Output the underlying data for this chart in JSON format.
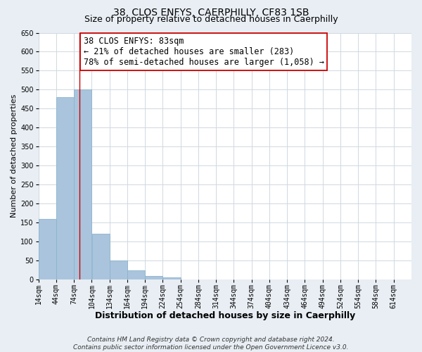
{
  "title": "38, CLOS ENFYS, CAERPHILLY, CF83 1SB",
  "subtitle": "Size of property relative to detached houses in Caerphilly",
  "xlabel": "Distribution of detached houses by size in Caerphilly",
  "ylabel": "Number of detached properties",
  "bar_edges": [
    14,
    44,
    74,
    104,
    134,
    164,
    194,
    224,
    254,
    284,
    314,
    344,
    374,
    404,
    434,
    464,
    494,
    524,
    554,
    584,
    614
  ],
  "bar_heights": [
    160,
    480,
    500,
    120,
    50,
    25,
    10,
    5,
    0,
    0,
    0,
    0,
    0,
    0,
    0,
    0,
    0,
    0,
    0,
    0
  ],
  "bar_color": "#aac4dd",
  "bar_edgecolor": "#8ab4cc",
  "property_line_x": 83,
  "property_line_color": "#cc0000",
  "annotation_text": "38 CLOS ENFYS: 83sqm\n← 21% of detached houses are smaller (283)\n78% of semi-detached houses are larger (1,058) →",
  "annotation_box_edgecolor": "#cc0000",
  "annotation_box_facecolor": "#ffffff",
  "ylim": [
    0,
    650
  ],
  "yticks": [
    0,
    50,
    100,
    150,
    200,
    250,
    300,
    350,
    400,
    450,
    500,
    550,
    600,
    650
  ],
  "xtick_labels": [
    "14sqm",
    "44sqm",
    "74sqm",
    "104sqm",
    "134sqm",
    "164sqm",
    "194sqm",
    "224sqm",
    "254sqm",
    "284sqm",
    "314sqm",
    "344sqm",
    "374sqm",
    "404sqm",
    "434sqm",
    "464sqm",
    "494sqm",
    "524sqm",
    "554sqm",
    "584sqm",
    "614sqm"
  ],
  "footnote": "Contains HM Land Registry data © Crown copyright and database right 2024.\nContains public sector information licensed under the Open Government Licence v3.0.",
  "title_fontsize": 10,
  "subtitle_fontsize": 9,
  "xlabel_fontsize": 9,
  "ylabel_fontsize": 8,
  "tick_fontsize": 7,
  "annotation_fontsize": 8.5,
  "footnote_fontsize": 6.5,
  "fig_bg_color": "#e8eef4",
  "plot_bg_color": "#ffffff",
  "grid_color": "#d0d8e0"
}
